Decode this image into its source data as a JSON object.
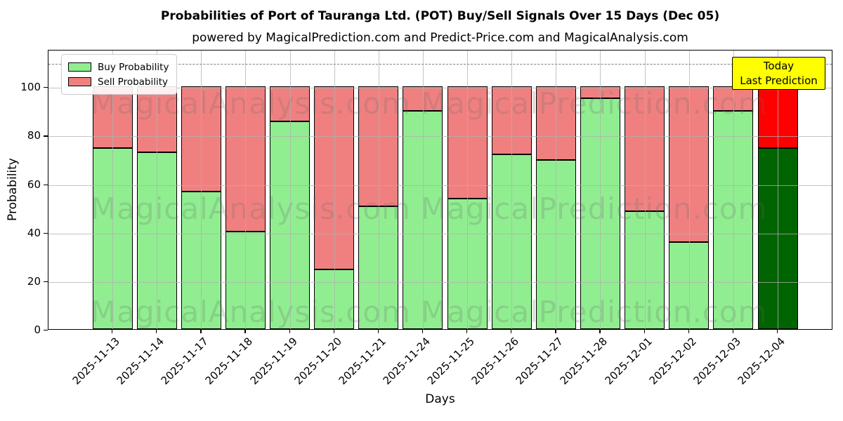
{
  "chart_data": {
    "type": "bar",
    "stacked": true,
    "title": "Probabilities of Port of Tauranga Ltd. (POT) Buy/Sell Signals Over 15 Days (Dec 05)",
    "subtitle": "powered by MagicalPrediction.com and Predict-Price.com and MagicalAnalysis.com",
    "xlabel": "Days",
    "ylabel": "Probability",
    "categories": [
      "2025-11-13",
      "2025-11-14",
      "2025-11-17",
      "2025-11-18",
      "2025-11-19",
      "2025-11-20",
      "2025-11-21",
      "2025-11-24",
      "2025-11-25",
      "2025-11-26",
      "2025-11-27",
      "2025-11-28",
      "2025-12-01",
      "2025-12-02",
      "2025-12-03",
      "2025-12-04"
    ],
    "series": [
      {
        "name": "Buy Probability",
        "color": "#90EE90",
        "values": [
          74.7,
          73.0,
          56.6,
          40.2,
          85.6,
          24.7,
          50.7,
          90.1,
          53.8,
          71.9,
          69.6,
          95.1,
          48.6,
          35.9,
          90.1,
          74.6
        ]
      },
      {
        "name": "Sell Probability",
        "color": "#F08080",
        "values": [
          25.3,
          27.0,
          43.4,
          59.8,
          14.4,
          75.3,
          49.3,
          9.9,
          46.2,
          28.1,
          30.4,
          4.9,
          51.4,
          64.1,
          9.9,
          25.4
        ]
      }
    ],
    "today": {
      "index": 15,
      "category": "2025-12-04",
      "buy_color": "#006400",
      "sell_color": "#FF0000"
    },
    "yticks": [
      0,
      20,
      40,
      60,
      80,
      100
    ],
    "ylim": [
      0,
      115.4
    ],
    "dashed_gridline_y": 110,
    "grid": true,
    "legend_position": "upper left"
  },
  "legend": {
    "items": [
      {
        "label": "Buy Probability",
        "color": "#90EE90"
      },
      {
        "label": "Sell Probability",
        "color": "#F08080"
      }
    ]
  },
  "annotation": {
    "line1": "Today",
    "line2": "Last Prediction",
    "bg_color": "#FFFF00"
  },
  "watermarks": {
    "texts": [
      "MagicalAnalysis.com",
      "MagicalPrediction.com"
    ]
  },
  "colors": {
    "grid": "rgba(176,176,176,0.75)",
    "dashed_line": "#7f7f7f",
    "bar_edge": "#000000",
    "background": "#FFFFFF"
  }
}
